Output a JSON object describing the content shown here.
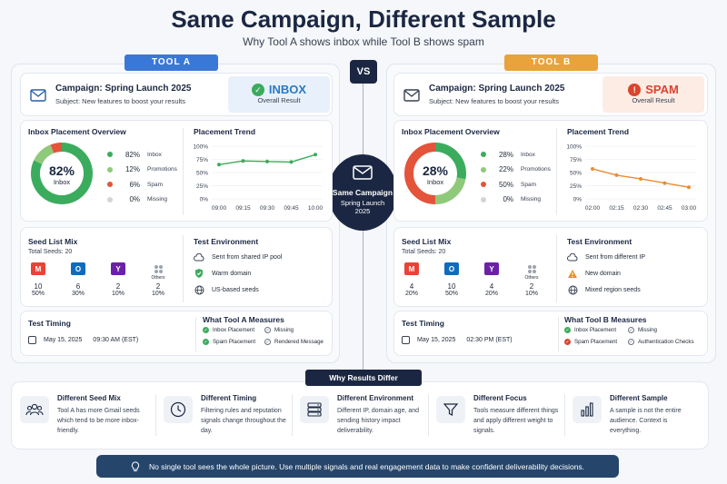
{
  "header": {
    "title": "Same Campaign, Different Sample",
    "subtitle": "Why Tool A shows inbox while Tool B shows spam"
  },
  "vs_label": "VS",
  "center": {
    "title": "Same Campaign",
    "line1": "Spring Launch",
    "line2": "2025"
  },
  "tool_a": {
    "tag": "TOOL A",
    "accent": "#3a78d8",
    "campaign": "Campaign: Spring Launch 2025",
    "subject": "Subject: New features to boost your results",
    "result": "INBOX",
    "result_sub": "Overall Result",
    "result_color": "#2a79c4",
    "placement_title": "Inbox Placement Overview",
    "donut_value": "82%",
    "donut_label": "Inbox",
    "placement": [
      {
        "pct": "82%",
        "label": "Inbox",
        "color": "#3bac5d",
        "value": 82
      },
      {
        "pct": "12%",
        "label": "Promotions",
        "color": "#8fc97a",
        "value": 12
      },
      {
        "pct": "6%",
        "label": "Spam",
        "color": "#e3543b",
        "value": 6
      },
      {
        "pct": "0%",
        "label": "Missing",
        "color": "#d1d5db",
        "value": 0
      }
    ],
    "trend_title": "Placement Trend",
    "trend_y_ticks": [
      "100%",
      "75%",
      "50%",
      "25%",
      "0%"
    ],
    "trend_x": [
      "09:00",
      "09:15",
      "09:30",
      "09:45",
      "10:00"
    ],
    "trend_values": [
      65,
      72,
      71,
      70,
      84
    ],
    "trend_color": "#3bac5d",
    "seed_title": "Seed List Mix",
    "seed_total": "Total Seeds: 20",
    "seeds": [
      {
        "name": "gmail-icon",
        "count": "10",
        "pct": "50%",
        "color": "#ea4335",
        "glyph": "M",
        "label": ""
      },
      {
        "name": "outlook-icon",
        "count": "6",
        "pct": "30%",
        "color": "#0f6cbd",
        "glyph": "O",
        "label": ""
      },
      {
        "name": "yahoo-icon",
        "count": "2",
        "pct": "10%",
        "color": "#6b21a8",
        "glyph": "Y",
        "label": ""
      },
      {
        "name": "others-icon",
        "count": "2",
        "pct": "10%",
        "color": "#9ca3af",
        "glyph": "",
        "label": "Others"
      }
    ],
    "env_title": "Test Environment",
    "env": [
      {
        "icon": "cloud-icon",
        "text": "Sent from shared IP pool"
      },
      {
        "icon": "shield-icon",
        "text": "Warm domain"
      },
      {
        "icon": "globe-icon",
        "text": "US-based seeds"
      }
    ],
    "timing_title": "Test Timing",
    "timing_date": "May 15, 2025",
    "timing_time": "09:30 AM (EST)",
    "measures_title": "What Tool A Measures",
    "measures": [
      {
        "text": "Inbox Placement",
        "state": "on"
      },
      {
        "text": "Missing",
        "state": "off"
      },
      {
        "text": "Spam Placement",
        "state": "on"
      },
      {
        "text": "Rendered Message",
        "state": "off"
      }
    ]
  },
  "tool_b": {
    "tag": "TOOL B",
    "accent": "#e8a33a",
    "campaign": "Campaign: Spring Launch 2025",
    "subject": "Subject: New features to boost your results",
    "result": "SPAM",
    "result_sub": "Overall Result",
    "result_color": "#d9452f",
    "placement_title": "Inbox Placement Overview",
    "donut_value": "28%",
    "donut_label": "Inbox",
    "placement": [
      {
        "pct": "28%",
        "label": "Inbox",
        "color": "#3bac5d",
        "value": 28
      },
      {
        "pct": "22%",
        "label": "Promotions",
        "color": "#8fc97a",
        "value": 22
      },
      {
        "pct": "50%",
        "label": "Spam",
        "color": "#e3543b",
        "value": 50
      },
      {
        "pct": "0%",
        "label": "Missing",
        "color": "#d1d5db",
        "value": 0
      }
    ],
    "trend_title": "Placement Trend",
    "trend_y_ticks": [
      "100%",
      "75%",
      "50%",
      "25%",
      "0%"
    ],
    "trend_x": [
      "02:00",
      "02:15",
      "02:30",
      "02:45",
      "03:00"
    ],
    "trend_values": [
      57,
      45,
      38,
      30,
      22
    ],
    "trend_color": "#eb8d2f",
    "seed_title": "Seed List Mix",
    "seed_total": "Total Seeds: 20",
    "seeds": [
      {
        "name": "gmail-icon",
        "count": "4",
        "pct": "20%",
        "color": "#ea4335",
        "glyph": "M",
        "label": ""
      },
      {
        "name": "outlook-icon",
        "count": "10",
        "pct": "50%",
        "color": "#0f6cbd",
        "glyph": "O",
        "label": ""
      },
      {
        "name": "yahoo-icon",
        "count": "4",
        "pct": "20%",
        "color": "#6b21a8",
        "glyph": "Y",
        "label": ""
      },
      {
        "name": "others-icon",
        "count": "2",
        "pct": "10%",
        "color": "#9ca3af",
        "glyph": "",
        "label": "Others"
      }
    ],
    "env_title": "Test Environment",
    "env": [
      {
        "icon": "cloud-icon",
        "text": "Sent from different IP"
      },
      {
        "icon": "warning-icon",
        "text": "New domain"
      },
      {
        "icon": "globe-icon",
        "text": "Mixed region seeds"
      }
    ],
    "timing_title": "Test Timing",
    "timing_date": "May 15, 2025",
    "timing_time": "02:30 PM (EST)",
    "measures_title": "What Tool B Measures",
    "measures": [
      {
        "text": "Inbox Placement",
        "state": "on"
      },
      {
        "text": "Missing",
        "state": "off"
      },
      {
        "text": "Spam Placement",
        "state": "warn"
      },
      {
        "text": "Authentication Checks",
        "state": "off"
      }
    ]
  },
  "why": {
    "tag": "Why Results Differ",
    "items": [
      {
        "icon": "people-icon",
        "title": "Different Seed Mix",
        "text": "Tool A has more Gmail seeds which tend to be more inbox-friendly."
      },
      {
        "icon": "clock-icon",
        "title": "Different Timing",
        "text": "Filtering rules and reputation signals change throughout the day."
      },
      {
        "icon": "server-icon",
        "title": "Different Environment",
        "text": "Different IP, domain age, and sending history impact deliverability."
      },
      {
        "icon": "filter-icon",
        "title": "Different Focus",
        "text": "Tools measure different things and apply different weight to signals."
      },
      {
        "icon": "bar-chart-icon",
        "title": "Different Sample",
        "text": "A sample is not the entire audience. Context is everything."
      }
    ]
  },
  "footer": {
    "message": "No single tool sees the whole picture. Use multiple signals and real engagement data to make confident deliverability decisions."
  }
}
